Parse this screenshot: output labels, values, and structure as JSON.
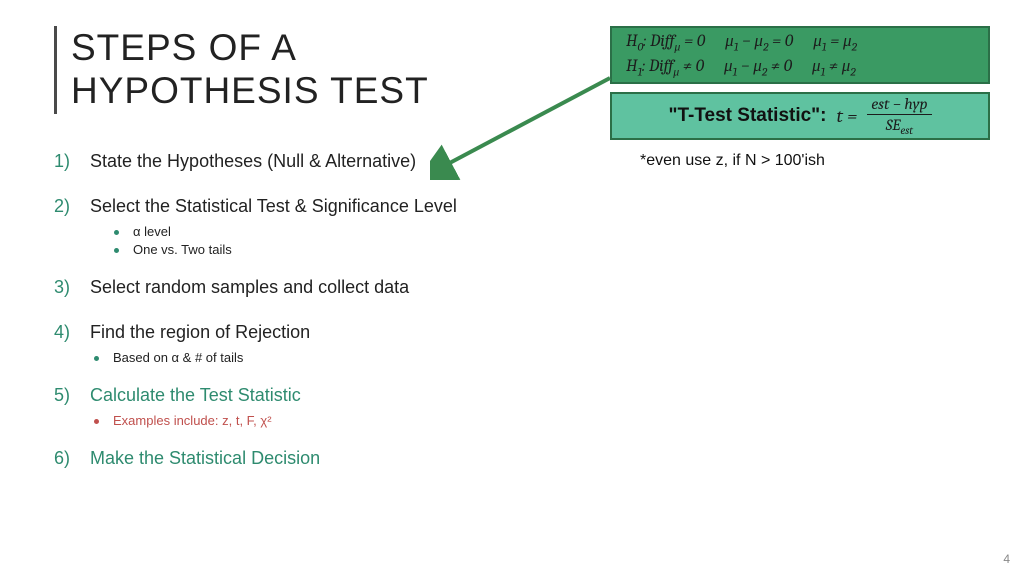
{
  "title": "STEPS OF A\nHYPOTHESIS TEST",
  "steps": [
    {
      "num": "1)",
      "text": "State the Hypotheses (Null & Alternative)",
      "green": false
    },
    {
      "num": "2)",
      "text": "Select the Statistical Test & Significance Level",
      "green": false
    },
    {
      "num": "3)",
      "text": "Select random samples and collect data",
      "green": false
    },
    {
      "num": "4)",
      "text": "Find the region of Rejection",
      "green": false
    },
    {
      "num": "5)",
      "text": "Calculate the Test Statistic",
      "green": true
    },
    {
      "num": "6)",
      "text": "Make the Statistical Decision",
      "green": true
    }
  ],
  "subs_2": [
    {
      "text": "α level"
    },
    {
      "text": "One vs. Two tails"
    }
  ],
  "subs_4": [
    {
      "text": "Based on α & # of tails"
    }
  ],
  "subs_5": [
    {
      "text": "Examples include: z, t, F, χ²"
    }
  ],
  "box1": {
    "row1": [
      "H₀: Diff_μ = 0",
      "μ₁ − μ₂ = 0",
      "μ₁ = μ₂"
    ],
    "row2": [
      "H₁: Diff_μ ≠ 0",
      "μ₁ − μ₂ ≠ 0",
      "μ₁ ≠ μ₂"
    ]
  },
  "box2": {
    "label": "\"T-Test Statistic\":",
    "lhs": "t =",
    "num": "est − hyp",
    "den": "SE_est"
  },
  "note": "*even use z, if N > 100'ish",
  "page": "4",
  "colors": {
    "accent_green": "#2e8b6f",
    "box_dark": "#3a9a63",
    "box_light": "#5fc2a0",
    "border": "#2b6f47",
    "arrow": "#3a8a4f",
    "red": "#c0504d"
  }
}
